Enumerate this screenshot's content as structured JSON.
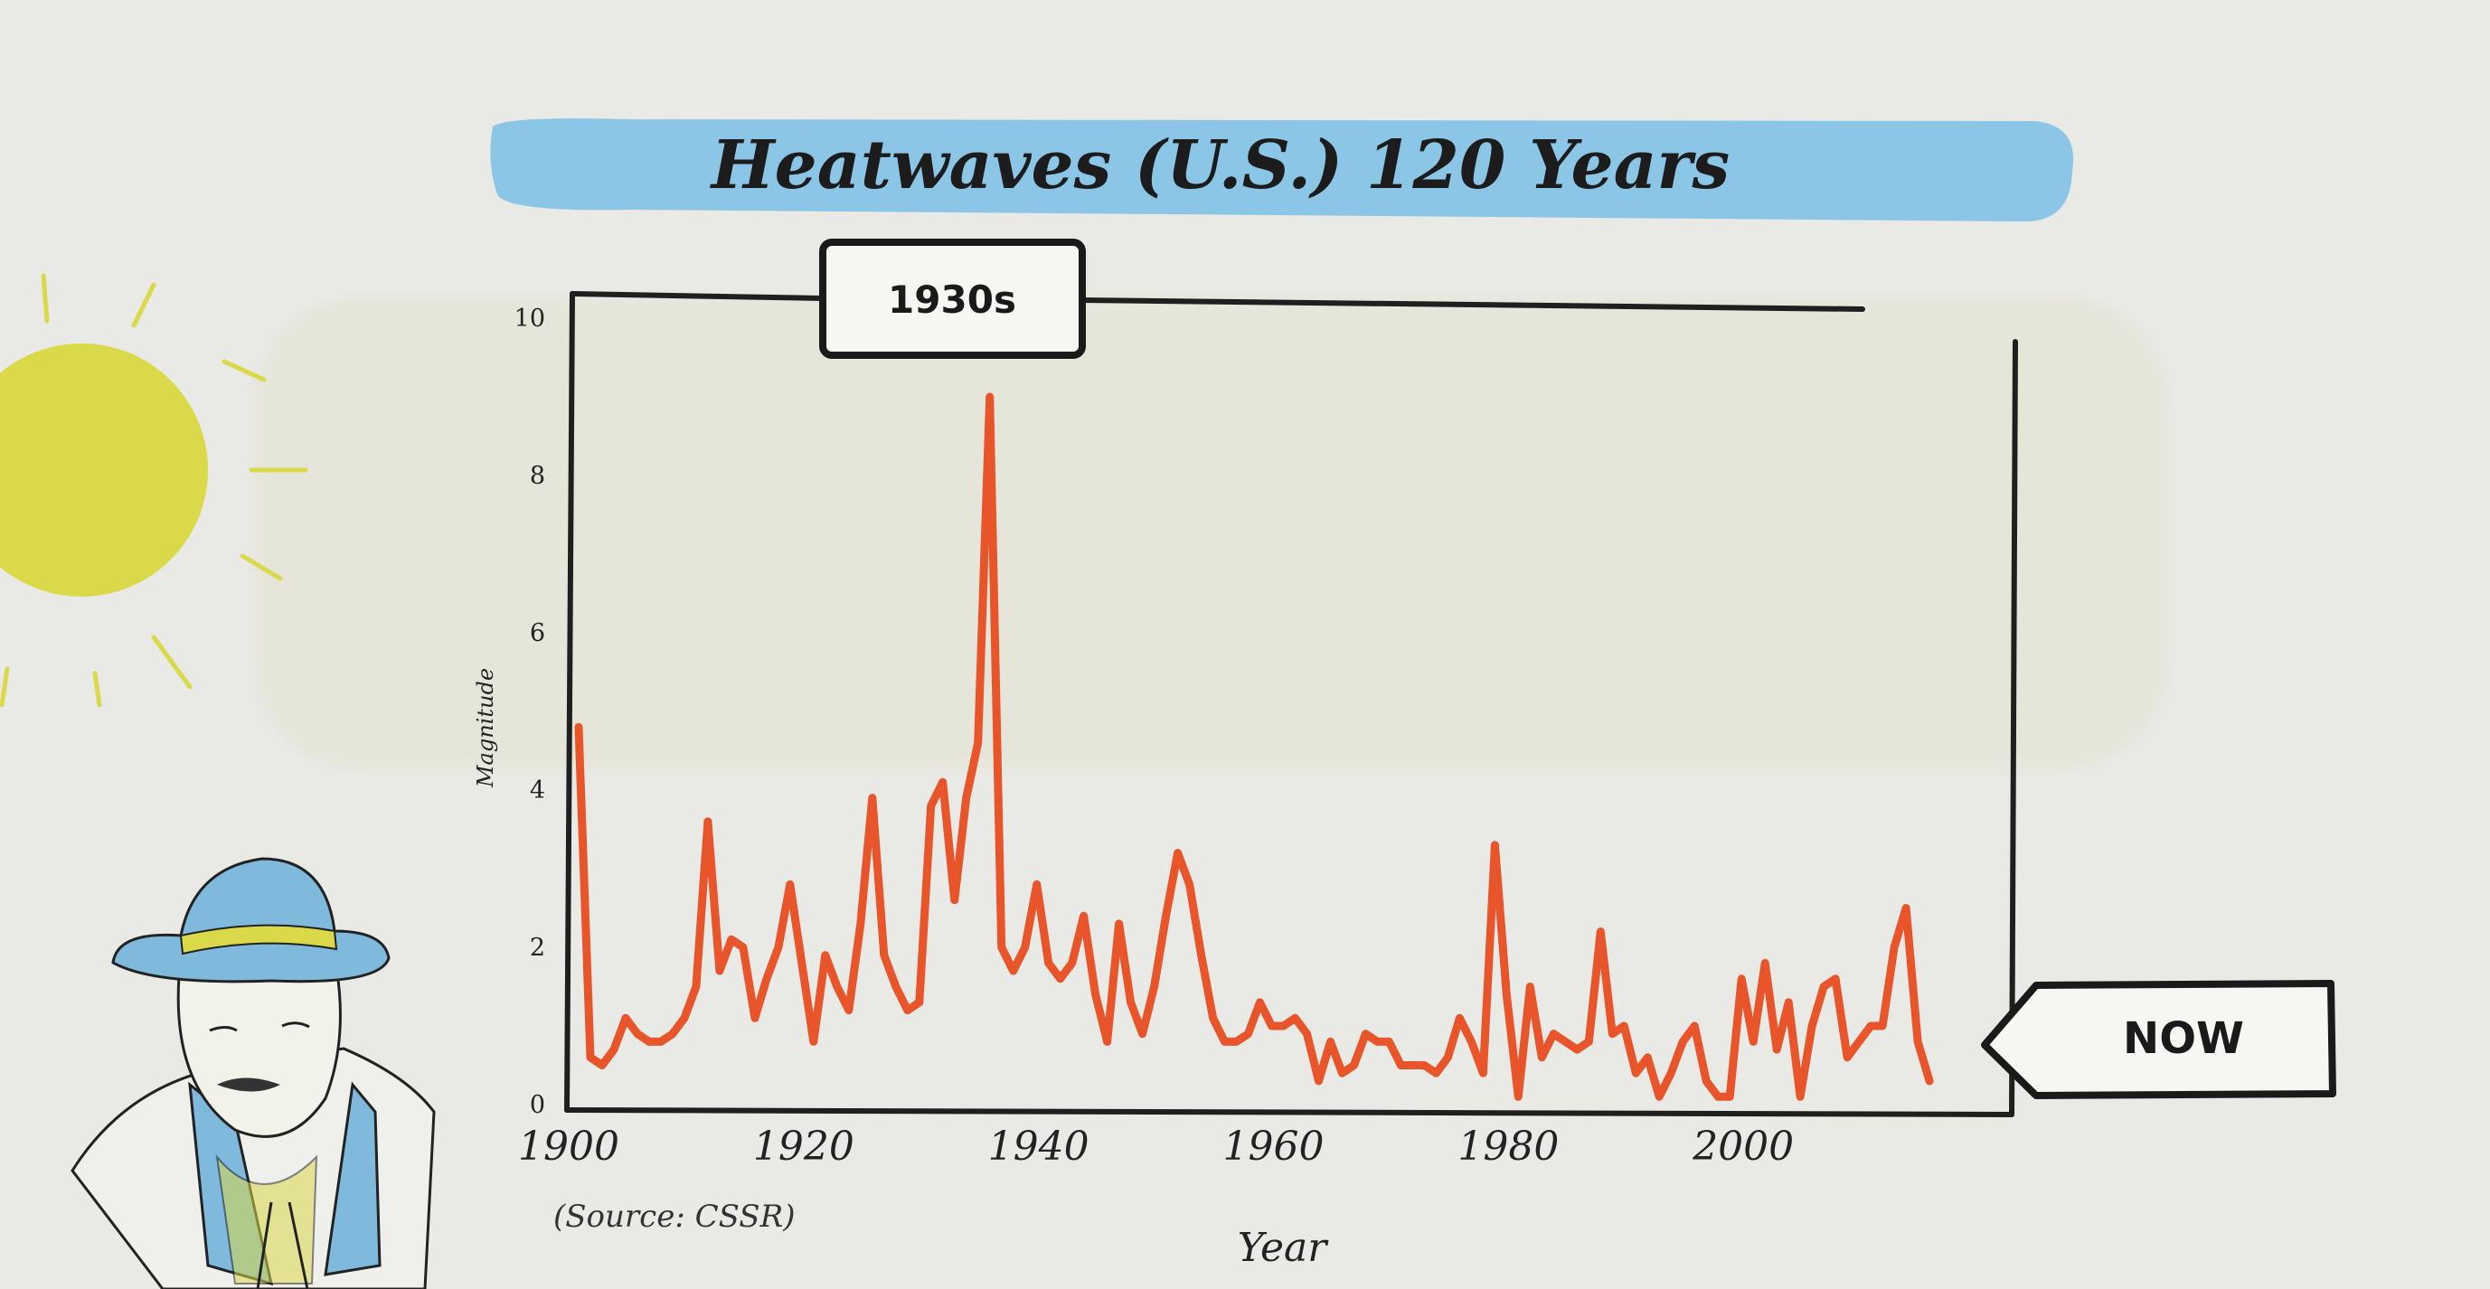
{
  "chart_data": {
    "type": "line",
    "title": "Heatwaves (U.S.) 120 Years",
    "xlabel": "Year",
    "ylabel": "Magnitude",
    "source": "(Source: CSSR)",
    "xlim": [
      1900,
      2023
    ],
    "ylim": [
      0,
      10
    ],
    "x_ticks": [
      "1900",
      "1920",
      "1940",
      "1960",
      "1980",
      "2000"
    ],
    "y_ticks": [
      "0",
      "2",
      "4",
      "6",
      "8",
      "10"
    ],
    "callouts": {
      "decade": "1930s",
      "now": "NOW"
    },
    "colors": {
      "line": "#e8552b",
      "banner": "#8cc6e6",
      "sun": "#d9d94a"
    },
    "series": [
      {
        "x": [
          1901,
          1902,
          1903,
          1904,
          1905,
          1906,
          1907,
          1908,
          1909,
          1910,
          1911,
          1912,
          1913,
          1914,
          1915,
          1916,
          1917,
          1918,
          1919,
          1920,
          1921,
          1922,
          1923,
          1924,
          1925,
          1926,
          1927,
          1928,
          1929,
          1930,
          1931,
          1932,
          1933,
          1934,
          1935,
          1936,
          1937,
          1938,
          1939,
          1940,
          1941,
          1942,
          1943,
          1944,
          1945,
          1946,
          1947,
          1948,
          1949,
          1950,
          1951,
          1952,
          1953,
          1954,
          1955,
          1956,
          1957,
          1958,
          1959,
          1960,
          1961,
          1962,
          1963,
          1964,
          1965,
          1966,
          1967,
          1968,
          1969,
          1970,
          1971,
          1972,
          1973,
          1974,
          1975,
          1976,
          1977,
          1978,
          1979,
          1980,
          1981,
          1982,
          1983,
          1984,
          1985,
          1986,
          1987,
          1988,
          1989,
          1990,
          1991,
          1992,
          1993,
          1994,
          1995,
          1996,
          1997,
          1998,
          1999,
          2000,
          2001,
          2002,
          2003,
          2004,
          2005,
          2006,
          2007,
          2008,
          2009,
          2010,
          2011,
          2012,
          2013,
          2014,
          2015,
          2016
        ],
        "values": [
          4.8,
          0.6,
          0.5,
          0.7,
          1.1,
          0.9,
          0.8,
          0.8,
          0.9,
          1.1,
          1.5,
          3.6,
          1.7,
          2.1,
          2.0,
          1.1,
          1.6,
          2.0,
          2.8,
          1.8,
          0.8,
          1.9,
          1.5,
          1.2,
          2.3,
          3.9,
          1.9,
          1.5,
          1.2,
          1.3,
          3.8,
          4.1,
          2.6,
          3.9,
          4.6,
          9.0,
          2.0,
          1.7,
          2.0,
          2.8,
          1.8,
          1.6,
          1.8,
          2.4,
          1.4,
          0.8,
          2.3,
          1.3,
          0.9,
          1.5,
          2.4,
          3.2,
          2.8,
          1.9,
          1.1,
          0.8,
          0.8,
          0.9,
          1.3,
          1.0,
          1.0,
          1.1,
          0.9,
          0.3,
          0.8,
          0.4,
          0.5,
          0.9,
          0.8,
          0.8,
          0.5,
          0.5,
          0.5,
          0.4,
          0.6,
          1.1,
          0.8,
          0.4,
          3.3,
          1.4,
          0.1,
          1.5,
          0.6,
          0.9,
          0.8,
          0.7,
          0.8,
          2.2,
          0.9,
          1.0,
          0.4,
          0.6,
          0.1,
          0.4,
          0.8,
          1.0,
          0.3,
          0.1,
          0.1,
          1.6,
          0.8,
          1.8,
          0.7,
          1.3,
          0.1,
          1.0,
          1.5,
          1.6,
          0.6,
          0.8,
          1.0,
          1.0,
          2.0,
          2.5,
          0.8,
          0.3
        ]
      }
    ]
  }
}
